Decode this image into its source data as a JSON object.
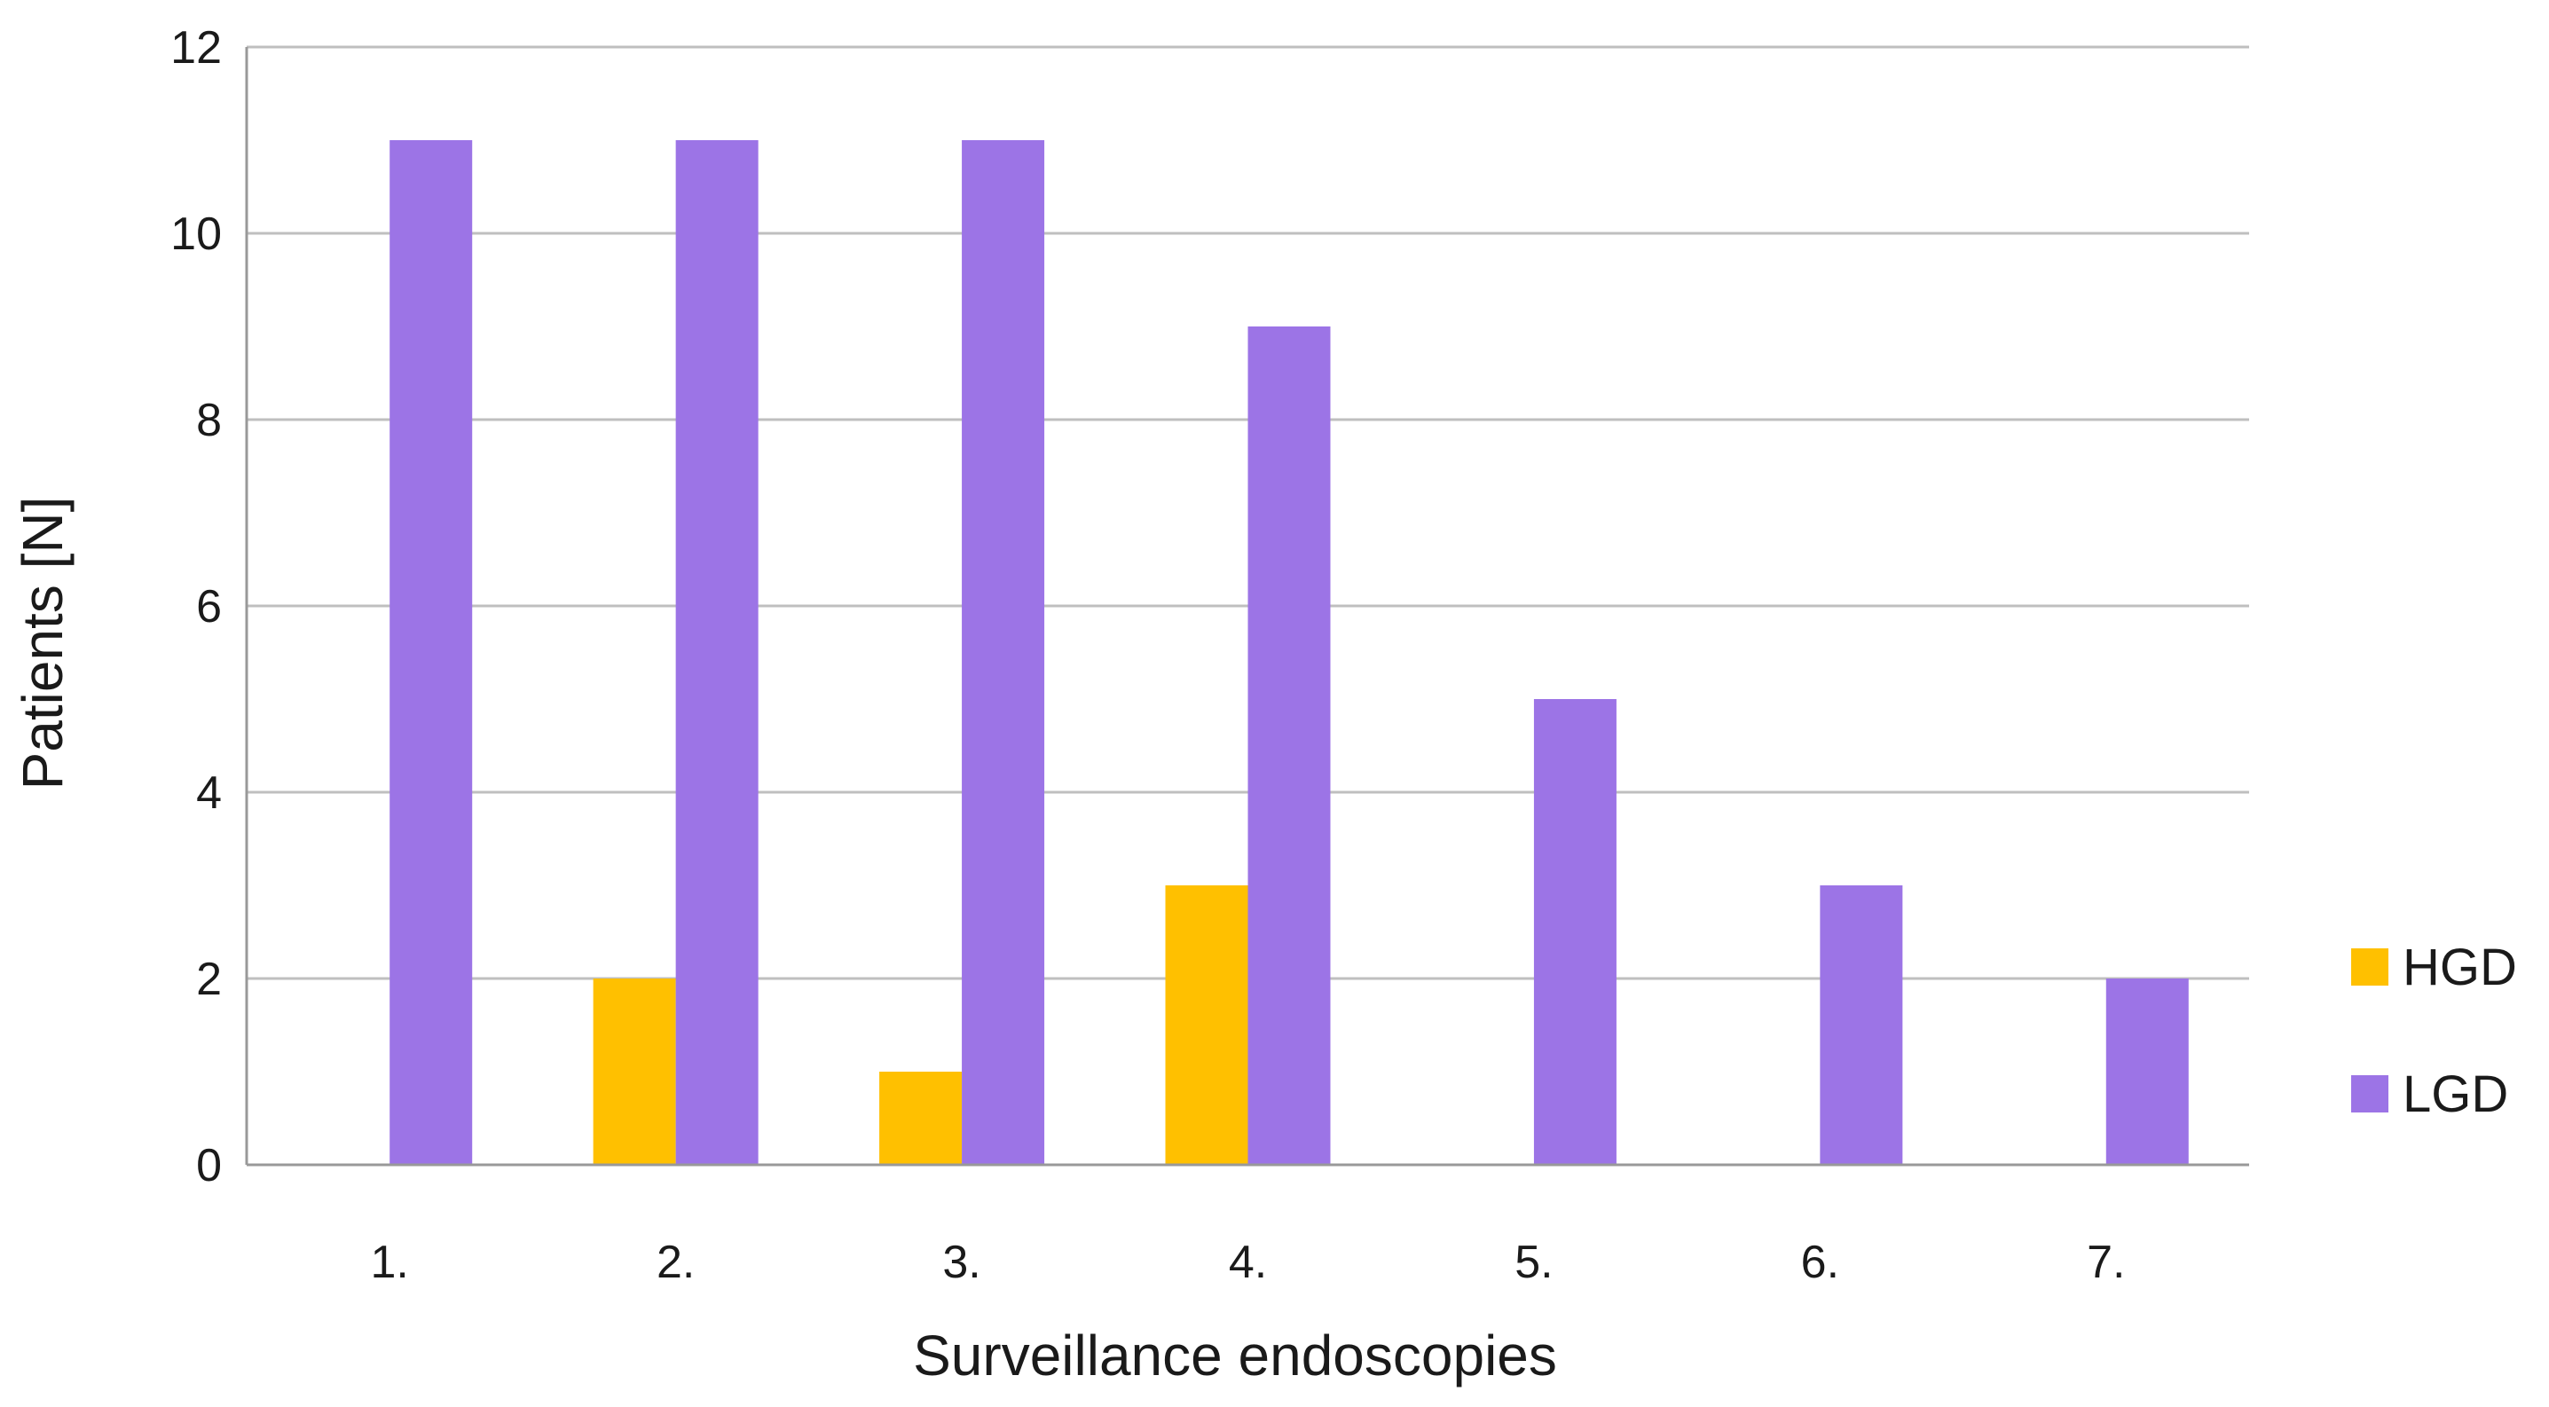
{
  "chart_data": {
    "type": "bar",
    "categories": [
      "1.",
      "2.",
      "3.",
      "4.",
      "5.",
      "6.",
      "7."
    ],
    "series": [
      {
        "name": "HGD",
        "values": [
          0,
          2,
          1,
          3,
          0,
          0,
          0
        ],
        "color": "#FFC000"
      },
      {
        "name": "LGD",
        "values": [
          11,
          11,
          11,
          9,
          5,
          3,
          2
        ],
        "color": "#9C74E6"
      }
    ],
    "title": "",
    "xlabel": "Surveillance endoscopies",
    "ylabel": "Patients [N]",
    "ylim": [
      0,
      12
    ],
    "yticks": [
      0,
      2,
      4,
      6,
      8,
      10,
      12
    ],
    "grid": true,
    "legend": "right",
    "gridColor": "#bfbfbf",
    "axisColor": "#999999"
  }
}
